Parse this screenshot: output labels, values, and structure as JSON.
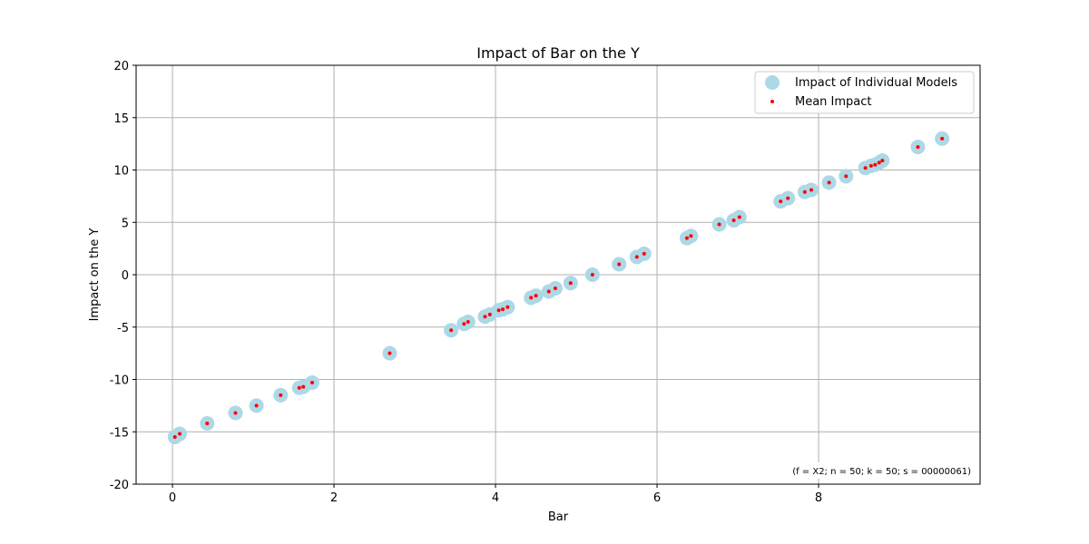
{
  "chart_data": {
    "type": "scatter",
    "title": "Impact of Bar on the Y",
    "xlabel": "Bar",
    "ylabel": "Impact on the Y",
    "xlim": [
      -0.45,
      10.0
    ],
    "ylim": [
      -20,
      20
    ],
    "xticks": [
      0,
      2,
      4,
      6,
      8
    ],
    "yticks": [
      -20,
      -15,
      -10,
      -5,
      0,
      5,
      10,
      15,
      20
    ],
    "grid": true,
    "legend_position": "top-right",
    "annotation": "(f = X2; n = 50; k = 50; s = 00000061)",
    "series": [
      {
        "name": "Impact of Individual Models",
        "color": "#add8e6",
        "marker": "large-circle",
        "x": [
          0.03,
          0.09,
          0.43,
          0.78,
          1.04,
          1.34,
          1.57,
          1.62,
          1.73,
          2.69,
          3.45,
          3.61,
          3.66,
          3.87,
          3.93,
          4.04,
          4.09,
          4.15,
          4.44,
          4.5,
          4.66,
          4.74,
          4.93,
          5.2,
          5.53,
          5.75,
          5.84,
          6.37,
          6.42,
          6.77,
          6.95,
          7.02,
          7.53,
          7.62,
          7.83,
          7.91,
          8.13,
          8.34,
          8.58,
          8.65,
          8.7,
          8.75,
          8.79,
          9.23,
          9.53
        ],
        "y": [
          -15.5,
          -15.2,
          -14.2,
          -13.2,
          -12.5,
          -11.5,
          -10.8,
          -10.7,
          -10.3,
          -7.5,
          -5.3,
          -4.7,
          -4.5,
          -4.0,
          -3.8,
          -3.4,
          -3.3,
          -3.1,
          -2.2,
          -2.0,
          -1.6,
          -1.3,
          -0.8,
          0.0,
          1.0,
          1.7,
          2.0,
          3.5,
          3.7,
          4.8,
          5.2,
          5.5,
          7.0,
          7.3,
          7.9,
          8.1,
          8.8,
          9.4,
          10.2,
          10.4,
          10.5,
          10.7,
          10.9,
          12.2,
          13.0
        ]
      },
      {
        "name": "Mean Impact",
        "color": "#ff0000",
        "marker": "small-dot",
        "x": [
          0.03,
          0.09,
          0.43,
          0.78,
          1.04,
          1.34,
          1.57,
          1.62,
          1.73,
          2.69,
          3.45,
          3.61,
          3.66,
          3.87,
          3.93,
          4.04,
          4.09,
          4.15,
          4.44,
          4.5,
          4.66,
          4.74,
          4.93,
          5.2,
          5.53,
          5.75,
          5.84,
          6.37,
          6.42,
          6.77,
          6.95,
          7.02,
          7.53,
          7.62,
          7.83,
          7.91,
          8.13,
          8.34,
          8.58,
          8.65,
          8.7,
          8.75,
          8.79,
          9.23,
          9.53
        ],
        "y": [
          -15.5,
          -15.2,
          -14.2,
          -13.2,
          -12.5,
          -11.5,
          -10.8,
          -10.7,
          -10.3,
          -7.5,
          -5.3,
          -4.7,
          -4.5,
          -4.0,
          -3.8,
          -3.4,
          -3.3,
          -3.1,
          -2.2,
          -2.0,
          -1.6,
          -1.3,
          -0.8,
          0.0,
          1.0,
          1.7,
          2.0,
          3.5,
          3.7,
          4.8,
          5.2,
          5.5,
          7.0,
          7.3,
          7.9,
          8.1,
          8.8,
          9.4,
          10.2,
          10.4,
          10.5,
          10.7,
          10.9,
          12.2,
          13.0
        ]
      }
    ]
  }
}
